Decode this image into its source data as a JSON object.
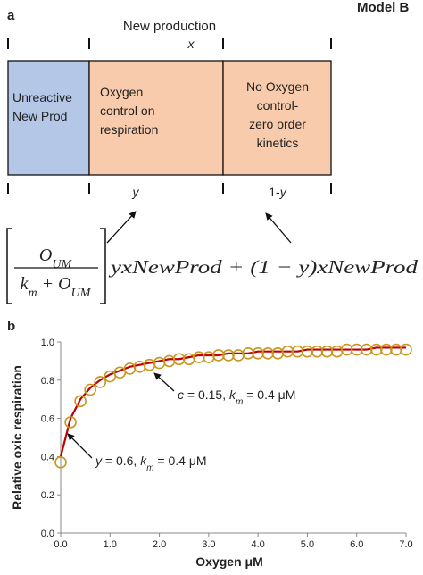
{
  "panel_a": {
    "label": "a",
    "model": "Model B",
    "header": "New production",
    "header_var": "x",
    "boxes": [
      {
        "color": "#b4c7e7",
        "lines": [
          "Unreactive",
          "New Prod"
        ]
      },
      {
        "color": "#f8cbad",
        "lines": [
          "Oxygen",
          "control on",
          "respiration"
        ]
      },
      {
        "color": "#f8cbad",
        "lines": [
          "No Oxygen",
          "control-",
          "zero order",
          "kinetics"
        ]
      }
    ],
    "labels": [
      [
        {
          "text": "y",
          "style": "i"
        }
      ],
      [
        {
          "text": "1-"
        },
        {
          "text": "y",
          "style": "i"
        }
      ]
    ],
    "equation": {
      "numerator": [
        {
          "text": "O"
        },
        {
          "text": "UM",
          "style": "sub"
        }
      ],
      "denominator": [
        {
          "text": "k"
        },
        {
          "text": "m",
          "style": "sub"
        },
        {
          "text": " + O"
        },
        {
          "text": "UM",
          "style": "sub"
        }
      ],
      "rest": [
        {
          "text": "yxNewProd + (1 − y)xNewProd"
        }
      ]
    }
  },
  "chart_data": {
    "type": "line",
    "panel_label": "b",
    "x_label": "Oxygen μM",
    "y_label": "Relative oxic respiration",
    "xlim": [
      0,
      7
    ],
    "ylim": [
      0,
      1
    ],
    "xticks": [
      {
        "value": 0,
        "label": "0.0"
      },
      {
        "value": 1,
        "label": "1.0"
      },
      {
        "value": 2,
        "label": "2.0"
      },
      {
        "value": 3,
        "label": "3.0"
      },
      {
        "value": 4,
        "label": "4.0"
      },
      {
        "value": 5,
        "label": "5.0"
      },
      {
        "value": 6,
        "label": "6.0"
      },
      {
        "value": 7,
        "label": "7.0"
      }
    ],
    "yticks": [
      {
        "value": 0,
        "label": "0.0"
      },
      {
        "value": 0.2,
        "label": "0.2"
      },
      {
        "value": 0.4,
        "label": "0.4"
      },
      {
        "value": 0.6,
        "label": "0.6"
      },
      {
        "value": 0.8,
        "label": "0.8"
      },
      {
        "value": 1,
        "label": "1.0"
      }
    ],
    "grid": false,
    "x": [
      0,
      0.2,
      0.4,
      0.6,
      0.8,
      1.0,
      1.2,
      1.4,
      1.6,
      1.8,
      2.0,
      2.2,
      2.4,
      2.6,
      2.8,
      3.0,
      3.2,
      3.4,
      3.6,
      3.8,
      4.0,
      4.2,
      4.4,
      4.6,
      4.8,
      5.0,
      5.2,
      5.4,
      5.6,
      5.8,
      6.0,
      6.2,
      6.4,
      6.6,
      6.8,
      7.0
    ],
    "series": [
      {
        "style": "line",
        "color": "#c00000",
        "values": [
          0.4,
          0.6,
          0.7,
          0.76,
          0.8,
          0.83,
          0.85,
          0.87,
          0.88,
          0.89,
          0.9,
          0.91,
          0.91,
          0.92,
          0.93,
          0.93,
          0.93,
          0.94,
          0.94,
          0.94,
          0.95,
          0.95,
          0.95,
          0.95,
          0.95,
          0.96,
          0.96,
          0.96,
          0.96,
          0.96,
          0.96,
          0.96,
          0.97,
          0.97,
          0.97,
          0.97
        ]
      },
      {
        "style": "marker",
        "color": "#c8961e",
        "values": [
          0.37,
          0.58,
          0.69,
          0.75,
          0.79,
          0.82,
          0.84,
          0.86,
          0.87,
          0.88,
          0.89,
          0.9,
          0.91,
          0.91,
          0.92,
          0.92,
          0.93,
          0.93,
          0.93,
          0.94,
          0.94,
          0.94,
          0.94,
          0.95,
          0.95,
          0.95,
          0.95,
          0.95,
          0.95,
          0.96,
          0.96,
          0.96,
          0.96,
          0.96,
          0.96,
          0.96
        ]
      }
    ],
    "annotations": [
      [
        {
          "text": "c",
          "style": "i"
        },
        {
          "text": " = 0.15, "
        },
        {
          "text": "k",
          "style": "i"
        },
        {
          "text": "m",
          "style": "isub"
        },
        {
          "text": " = 0.4 μM"
        }
      ],
      [
        {
          "text": "y",
          "style": "i"
        },
        {
          "text": " = 0.6, "
        },
        {
          "text": "k",
          "style": "i"
        },
        {
          "text": "m",
          "style": "isub"
        },
        {
          "text": " = 0.4 μM"
        }
      ]
    ]
  }
}
